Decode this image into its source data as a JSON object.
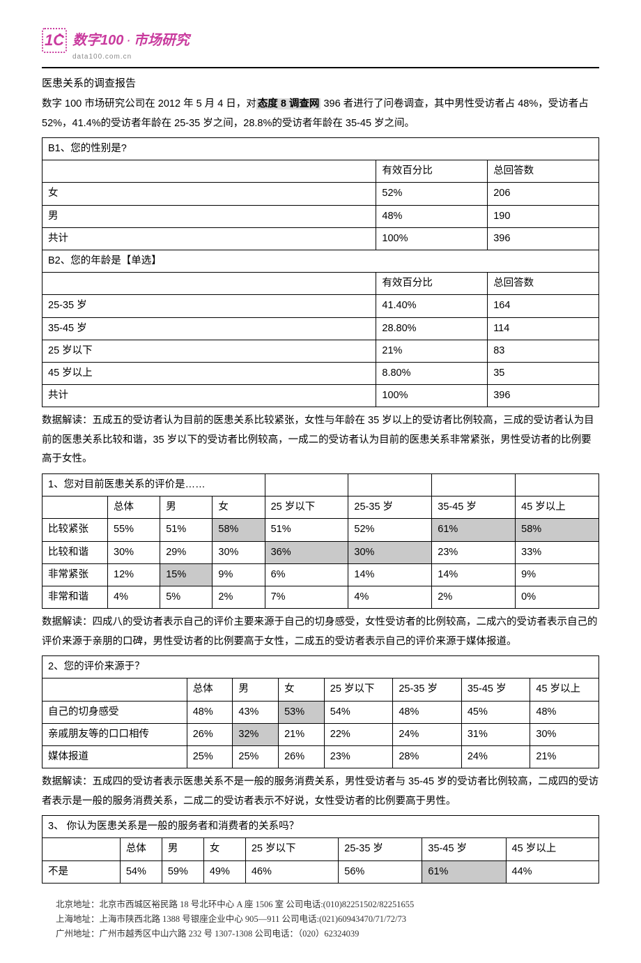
{
  "logo": {
    "brand": "数字100",
    "tag": "市场研究",
    "url": "data100.com.cn"
  },
  "title": "医患关系的调查报告",
  "intro": {
    "prefix": "数字 100 市场研究公司在 2012 年 5 月 4 日，对",
    "highlight": "态度 8 调查网",
    "suffix": " 396 者进行了问卷调查，其中男性受访者占 48%，受访者占 52%，41.4%的受访者年龄在 25-35 岁之间，28.8%的受访者年龄在 35-45 岁之间。"
  },
  "tableB1": {
    "question": "B1、您的性别是?",
    "headers": [
      "",
      "有效百分比",
      "总回答数"
    ],
    "rows": [
      [
        "女",
        "52%",
        "206"
      ],
      [
        "男",
        "48%",
        "190"
      ],
      [
        "共计",
        "100%",
        "396"
      ]
    ]
  },
  "tableB2": {
    "question": "B2、您的年龄是【单选】",
    "headers": [
      "",
      "有效百分比",
      "总回答数"
    ],
    "rows": [
      [
        "25-35 岁",
        "41.40%",
        "164"
      ],
      [
        "35-45 岁",
        "28.80%",
        "114"
      ],
      [
        "25 岁以下",
        "21%",
        "83"
      ],
      [
        "45 岁以上",
        "8.80%",
        "35"
      ],
      [
        "共计",
        "100%",
        "396"
      ]
    ]
  },
  "para1": "数据解读：五成五的受访者认为目前的医患关系比较紧张，女性与年龄在 35 岁以上的受访者比例较高，三成的受访者认为目前的医患关系比较和谐，35 岁以下的受访者比例较高，一成二的受访者认为目前的医患关系非常紧张，男性受访者的比例要高于女性。",
  "table1": {
    "question": "1、您对目前医患关系的评价是……",
    "headers": [
      "",
      "总体",
      "男",
      "女",
      "25 岁以下",
      "25-35 岁",
      "35-45 岁",
      "45 岁以上"
    ],
    "rows": [
      {
        "label": "比较紧张",
        "cells": [
          "55%",
          "51%",
          "58%",
          "51%",
          "52%",
          "61%",
          "58%"
        ],
        "shade": [
          2,
          5,
          6
        ]
      },
      {
        "label": "比较和谐",
        "cells": [
          "30%",
          "29%",
          "30%",
          "36%",
          "30%",
          "23%",
          "33%"
        ],
        "shade": [
          3,
          4
        ]
      },
      {
        "label": "非常紧张",
        "cells": [
          "12%",
          "15%",
          "9%",
          "6%",
          "14%",
          "14%",
          "9%"
        ],
        "shade": [
          1
        ]
      },
      {
        "label": "非常和谐",
        "cells": [
          "4%",
          "5%",
          "2%",
          "7%",
          "4%",
          "2%",
          "0%"
        ],
        "shade": []
      }
    ]
  },
  "para2": "数据解读：四成八的受访者表示自己的评价主要来源于自己的切身感受，女性受访者的比例较高，二成六的受访者表示自己的评价来源于亲朋的口碑，男性受访者的比例要高于女性，二成五的受访者表示自己的评价来源于媒体报道。",
  "table2": {
    "question": "2、您的评价来源于？",
    "headers": [
      "",
      "总体",
      "男",
      "女",
      "25 岁以下",
      "25-35 岁",
      "35-45 岁",
      "45 岁以上"
    ],
    "rows": [
      {
        "label": "自己的切身感受",
        "cells": [
          "48%",
          "43%",
          "53%",
          "54%",
          "48%",
          "45%",
          "48%"
        ],
        "shade": [
          2
        ]
      },
      {
        "label": "亲戚朋友等的口口相传",
        "cells": [
          "26%",
          "32%",
          "21%",
          "22%",
          "24%",
          "31%",
          "30%"
        ],
        "shade": [
          1
        ]
      },
      {
        "label": "媒体报道",
        "cells": [
          "25%",
          "25%",
          "26%",
          "23%",
          "28%",
          "24%",
          "21%"
        ],
        "shade": []
      }
    ]
  },
  "para3": "数据解读：五成四的受访者表示医患关系不是一般的服务消费关系，男性受访者与 35-45 岁的受访者比例较高，二成四的受访者表示是一般的服务消费关系，二成二的受访者表示不好说，女性受访者的比例要高于男性。",
  "table3": {
    "question": "3、 你认为医患关系是一般的服务者和消费者的关系吗？",
    "headers": [
      "",
      "总体",
      "男",
      "女",
      "25 岁以下",
      "25-35 岁",
      "35-45 岁",
      "45 岁以上"
    ],
    "rows": [
      {
        "label": "不是",
        "cells": [
          "54%",
          "59%",
          "49%",
          "46%",
          "56%",
          "61%",
          "44%"
        ],
        "shade": [
          5
        ]
      }
    ]
  },
  "footer": {
    "l1": "北京地址：北京市西城区裕民路 18 号北环中心 A 座 1506 室  公司电话:(010)82251502/82251655",
    "l2": "上海地址：上海市陕西北路 1388 号银座企业中心 905—911  公司电话:(021)60943470/71/72/73",
    "l3": "广州地址：广州市越秀区中山六路 232 号 1307-1308  公司电话：（020）62324039"
  },
  "colors": {
    "brand": "#c93b9e",
    "shade": "#c9c9c9",
    "border": "#000000"
  }
}
